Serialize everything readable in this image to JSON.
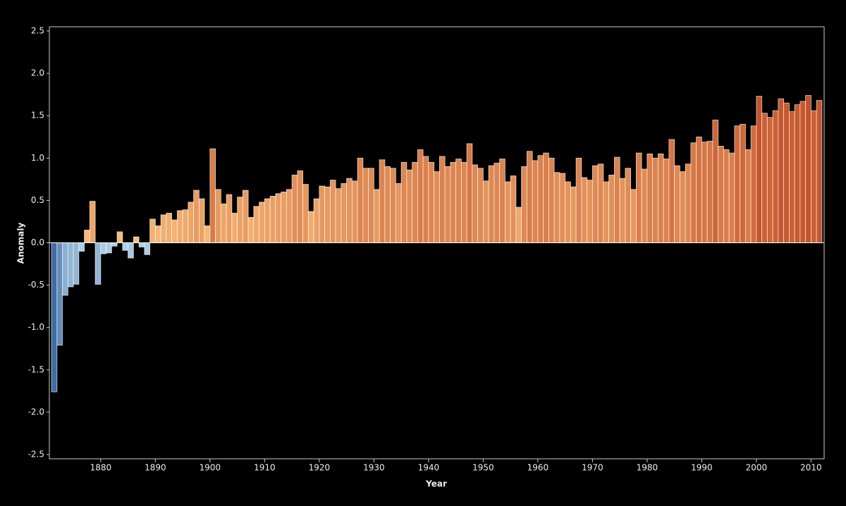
{
  "chart_data": {
    "type": "bar",
    "x_label": "Year",
    "y_label": "Anomaly",
    "x": [
      1871,
      1872,
      1873,
      1874,
      1875,
      1876,
      1877,
      1878,
      1879,
      1880,
      1881,
      1882,
      1883,
      1884,
      1885,
      1886,
      1887,
      1888,
      1889,
      1890,
      1891,
      1892,
      1893,
      1894,
      1895,
      1896,
      1897,
      1898,
      1899,
      1900,
      1901,
      1902,
      1903,
      1904,
      1905,
      1906,
      1907,
      1908,
      1909,
      1910,
      1911,
      1912,
      1913,
      1914,
      1915,
      1916,
      1917,
      1918,
      1919,
      1920,
      1921,
      1922,
      1923,
      1924,
      1925,
      1926,
      1927,
      1928,
      1929,
      1930,
      1931,
      1932,
      1933,
      1934,
      1935,
      1936,
      1937,
      1938,
      1939,
      1940,
      1941,
      1942,
      1943,
      1944,
      1945,
      1946,
      1947,
      1948,
      1949,
      1950,
      1951,
      1952,
      1953,
      1954,
      1955,
      1956,
      1957,
      1958,
      1959,
      1960,
      1961,
      1962,
      1963,
      1964,
      1965,
      1966,
      1967,
      1968,
      1969,
      1970,
      1971,
      1972,
      1973,
      1974,
      1975,
      1976,
      1977,
      1978,
      1979,
      1980,
      1981,
      1982,
      1983,
      1984,
      1985,
      1986,
      1987,
      1988,
      1989,
      1990,
      1991,
      1992,
      1993,
      1994,
      1995,
      1996,
      1997,
      1998,
      1999,
      2000,
      2001,
      2002,
      2003,
      2004,
      2005,
      2006,
      2007,
      2008,
      2009,
      2010,
      2011
    ],
    "values": [
      -1.76,
      -1.21,
      -0.62,
      -0.52,
      -0.49,
      -0.1,
      0.15,
      0.49,
      -0.49,
      -0.13,
      -0.12,
      -0.04,
      0.13,
      -0.09,
      -0.18,
      0.07,
      -0.05,
      -0.14,
      0.28,
      0.2,
      0.33,
      0.35,
      0.27,
      0.38,
      0.39,
      0.48,
      0.62,
      0.52,
      0.2,
      1.11,
      0.63,
      0.46,
      0.57,
      0.35,
      0.54,
      0.62,
      0.3,
      0.43,
      0.48,
      0.52,
      0.55,
      0.58,
      0.6,
      0.63,
      0.8,
      0.85,
      0.69,
      0.37,
      0.52,
      0.67,
      0.66,
      0.74,
      0.64,
      0.7,
      0.76,
      0.73,
      1.0,
      0.88,
      0.88,
      0.63,
      0.98,
      0.9,
      0.88,
      0.7,
      0.95,
      0.86,
      0.95,
      1.1,
      1.02,
      0.95,
      0.84,
      1.02,
      0.9,
      0.95,
      0.99,
      0.95,
      1.17,
      0.92,
      0.88,
      0.73,
      0.91,
      0.94,
      0.99,
      0.72,
      0.79,
      0.42,
      0.9,
      1.08,
      0.97,
      1.03,
      1.06,
      1.0,
      0.83,
      0.82,
      0.72,
      0.66,
      1.0,
      0.77,
      0.74,
      0.91,
      0.93,
      0.72,
      0.8,
      1.01,
      0.76,
      0.88,
      0.63,
      1.06,
      0.87,
      1.05,
      1.0,
      1.05,
      0.99,
      1.22,
      0.91,
      0.84,
      0.93,
      1.18,
      1.25,
      1.19,
      1.2,
      1.45,
      1.14,
      1.1,
      1.06,
      1.38,
      1.4,
      1.1,
      1.38,
      1.73,
      1.53,
      1.48,
      1.56,
      1.7,
      1.65,
      1.55,
      1.63,
      1.67,
      1.74,
      1.56,
      1.68
    ],
    "xlim": [
      1870.6,
      2012.4
    ],
    "xticks": [
      1880,
      1890,
      1900,
      1910,
      1920,
      1930,
      1940,
      1950,
      1960,
      1970,
      1980,
      1990,
      2000,
      2010
    ],
    "ylim": [
      -2.55,
      2.55
    ],
    "yticks": [
      {
        "value": -2.5,
        "label": "-2.5"
      },
      {
        "value": -2,
        "label": "-2.0"
      },
      {
        "value": -1.5,
        "label": "-1.5"
      },
      {
        "value": -1,
        "label": "-1.0"
      },
      {
        "value": -0.5,
        "label": "-0.5"
      },
      {
        "value": 0,
        "label": "0.0"
      },
      {
        "value": 0.5,
        "label": "0.5"
      },
      {
        "value": 1,
        "label": "1.0"
      },
      {
        "value": 1.5,
        "label": "1.5"
      },
      {
        "value": 2,
        "label": "2.0"
      },
      {
        "value": 2.5,
        "label": "2.5"
      }
    ],
    "colors": {
      "negative": [
        "#b4d3ea",
        "#3b6aa3"
      ],
      "positive": [
        "#fcc47f",
        "#c24f28"
      ]
    }
  }
}
